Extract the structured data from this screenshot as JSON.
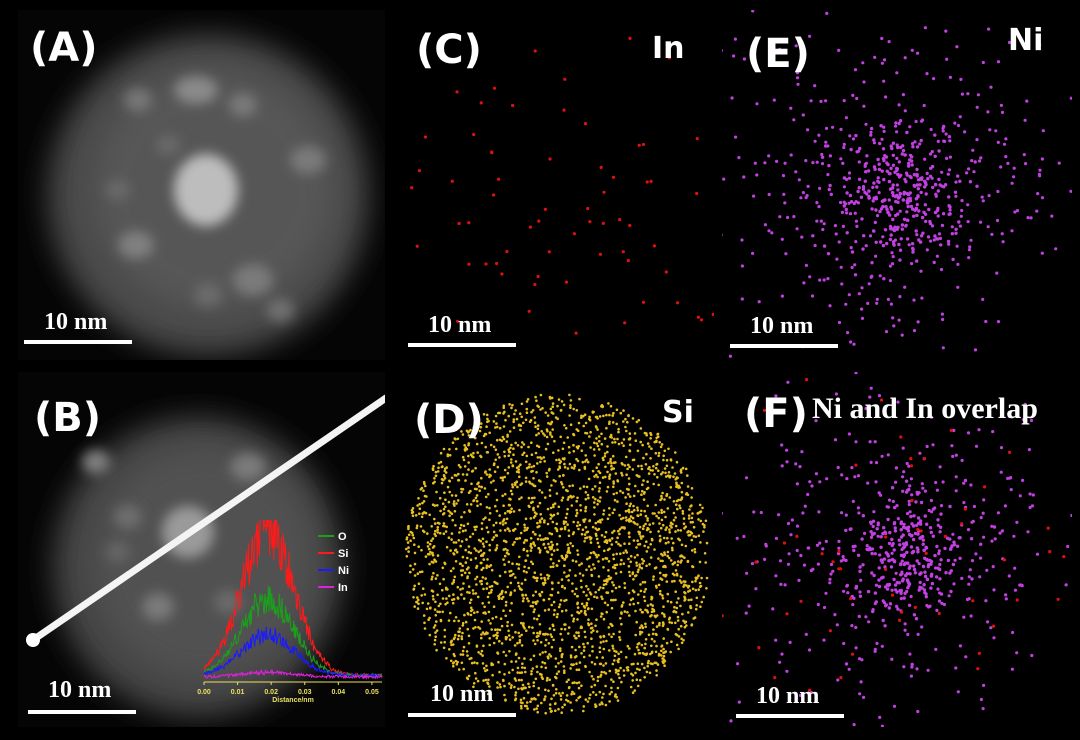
{
  "panels": {
    "a": {
      "label": "(A)",
      "scale": "10 nm"
    },
    "b": {
      "label": "(B)",
      "scale": "10 nm"
    },
    "c": {
      "label": "(C)",
      "element": "In",
      "scale": "10 nm",
      "color": "#e01010"
    },
    "d": {
      "label": "(D)",
      "element": "Si",
      "scale": "10 nm",
      "color": "#e8c020"
    },
    "e": {
      "label": "(E)",
      "element": "Ni",
      "scale": "10 nm",
      "color": "#c040e0"
    },
    "f": {
      "label": "(F)",
      "title": "Ni and In overlap",
      "scale": "10 nm"
    }
  },
  "chart_data": {
    "type": "line",
    "xlabel": "Distance/nm",
    "xlim": [
      0,
      0.053
    ],
    "x_ticks": [
      "0.00",
      "0.01",
      "0.02",
      "0.03",
      "0.04",
      "0.05"
    ],
    "legend_position": "top-right",
    "series": [
      {
        "name": "O",
        "color": "#1aa01a",
        "peak": 0.5
      },
      {
        "name": "Si",
        "color": "#ff1a1a",
        "peak": 0.95
      },
      {
        "name": "Ni",
        "color": "#1a1aff",
        "peak": 0.27
      },
      {
        "name": "In",
        "color": "#e020e0",
        "peak": 0.03
      }
    ]
  }
}
